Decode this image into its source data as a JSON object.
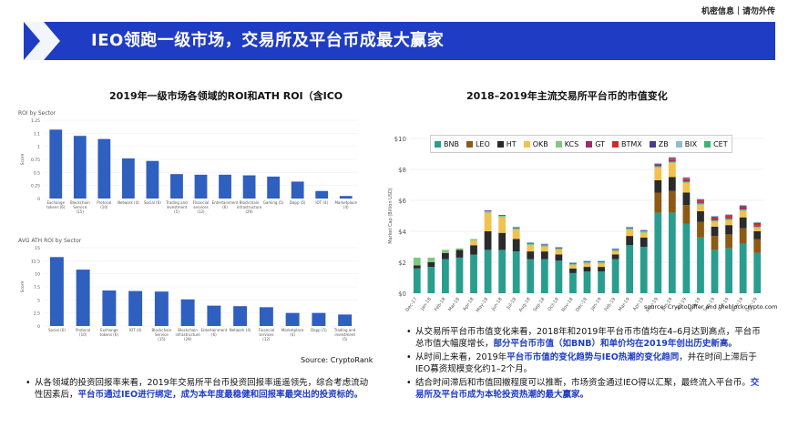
{
  "confidential": "机密信息｜请勿外传",
  "banner_title": "IEO领跑一级市场，交易所及平台币成最大赢家",
  "left": {
    "title": "2019年一级市场各领域的ROI和ATH ROI（含ICO",
    "source": "Source: CryptoRank",
    "bullet_1": "从各领域的投资回报率来看，2019年交易所平台币投资回报率遥遥领先，综合考虑流动性因素后，",
    "bullet_1_hl": "平台币通过IEO进行绑定，成为本年度最稳健和回报率最突出的投资标的。"
  },
  "right": {
    "title": "2018–2019年主流交易所平台币的市值变化",
    "source": "source: CryptoDiffer and theblockcrypto.com",
    "bullet_1_pre": "从交易所平台币市值变化来看，2018年和2019年平台币市值均在4–6月达到高点，平台币总市值大幅度增长，",
    "bullet_1_hl": "部分平台币市值（如BNB）和单价均在2019年创出历史新高。",
    "bullet_2_pre": "从时间上来看，2019年",
    "bullet_2_hl": "平台币市值的变化趋势与IEO热潮的变化趋同",
    "bullet_2_post": "，并在时间上滞后于IEO募资规模变化约1–2个月。",
    "bullet_3_pre": "结合时间滞后和市值回撤程度可以推断，市场资金通过IEO得以汇聚，最终流入平台币。",
    "bullet_3_hl": "交易所及平台币成为本轮投资热潮的最大赢家。"
  },
  "colors": {
    "banner": "#1f3cc4",
    "bar": "#2f5fbf",
    "BNB": "#2a9d8f",
    "LEO": "#8b5a14",
    "HT": "#2b2b2b",
    "OKB": "#f2c14e",
    "KCS": "#7fc97f",
    "GT": "#9b2d6b",
    "BTMX": "#d62728",
    "ZB": "#4b3c8c",
    "BIX": "#8fbcd4",
    "CET": "#3cb371"
  },
  "chart_data": [
    {
      "type": "bar",
      "title": "ROI by Sector",
      "ylabel": "Score",
      "ylim": [
        0,
        1.25
      ],
      "yticks": [
        "1.25",
        "1.1",
        "1",
        "0.75",
        "0.5",
        "0.25",
        "0"
      ],
      "categories": [
        "Exchange tokens (6)",
        "Blockchain Service (15)",
        "Protocol (10)",
        "Network (4)",
        "Social (6)",
        "Trading and investment (5)",
        "Financial services (12)",
        "Entertainment (6)",
        "Blockchain infrastructure (29)",
        "Gaming (5)",
        "Dapp (5)",
        "IOT (4)",
        "Marketplace (4)"
      ],
      "values": [
        1.1,
        1.0,
        0.95,
        0.64,
        0.6,
        0.39,
        0.38,
        0.38,
        0.37,
        0.35,
        0.27,
        0.12,
        0.04
      ]
    },
    {
      "type": "bar",
      "title": "AVG ATH ROI by Sector",
      "ylabel": "Score",
      "ylim": [
        0,
        15
      ],
      "yticks": [
        "15",
        "12.5",
        "10",
        "7.5",
        "5",
        "2.5",
        "0"
      ],
      "categories": [
        "Social (6)",
        "Protocol (10)",
        "Exchange tokens (6)",
        "IOT (4)",
        "Blockchain Service (15)",
        "Blockchain infrastructure (29)",
        "Entertainment (6)",
        "Network (4)",
        "Financial services (12)",
        "Marketplace (4)",
        "Dapp (5)",
        "Trading and investment (5)"
      ],
      "values": [
        13.2,
        10.8,
        6.8,
        6.7,
        6.6,
        5.1,
        3.9,
        3.8,
        3.6,
        2.5,
        2.5,
        2.2
      ]
    },
    {
      "type": "bar",
      "stacked": true,
      "title": "",
      "ylabel": "Market Cap (Billion USD)",
      "ylim": [
        0,
        10
      ],
      "yticks": [
        "$10",
        "$8",
        "$6",
        "$4",
        "$2",
        "$0"
      ],
      "legend_position": "top",
      "x": [
        "Dec-17",
        "Jan-18",
        "Feb-18",
        "Mar-18",
        "Apr-18",
        "May-18",
        "Jun-18",
        "Jul-18",
        "Aug-18",
        "Sep-18",
        "Oct-18",
        "Nov-18",
        "Dec-18",
        "Jan-19",
        "Feb-19",
        "Mar-19",
        "Apr-19",
        "May-19",
        "Jun-19",
        "Jul-19",
        "Aug-19",
        "Sep-19",
        "Oct-19",
        "Nov-19",
        "Dec-19"
      ],
      "series": [
        {
          "name": "BNB",
          "values": [
            1.6,
            1.7,
            2.2,
            2.3,
            2.5,
            2.8,
            2.8,
            2.7,
            2.2,
            2.2,
            2.1,
            1.3,
            1.4,
            1.4,
            2.2,
            3.1,
            3.0,
            5.2,
            5.2,
            4.5,
            3.6,
            2.8,
            2.9,
            3.2,
            2.6
          ]
        },
        {
          "name": "LEO",
          "values": [
            0,
            0,
            0,
            0,
            0,
            0,
            0,
            0,
            0,
            0,
            0,
            0,
            0,
            0,
            0,
            0,
            0,
            1.3,
            1.4,
            1.2,
            1.0,
            0.9,
            0.9,
            1.0,
            0.9
          ]
        },
        {
          "name": "HT",
          "values": [
            0.2,
            0.3,
            0.4,
            0.5,
            0.6,
            1.2,
            1.1,
            0.8,
            0.5,
            0.5,
            0.4,
            0.3,
            0.3,
            0.3,
            0.3,
            0.6,
            0.6,
            0.8,
            0.9,
            0.8,
            0.7,
            0.6,
            0.6,
            0.7,
            0.5
          ]
        },
        {
          "name": "OKB",
          "values": [
            0,
            0,
            0,
            0,
            0.3,
            1.2,
            1.0,
            0.6,
            0.4,
            0.3,
            0.3,
            0.2,
            0.2,
            0.2,
            0.2,
            0.4,
            0.3,
            0.8,
            0.9,
            0.6,
            0.4,
            0.3,
            0.3,
            0.4,
            0.2
          ]
        },
        {
          "name": "KCS",
          "values": [
            0.5,
            0.3,
            0.2,
            0.1,
            0.1,
            0.1,
            0.1,
            0.1,
            0.1,
            0.1,
            0.1,
            0.1,
            0.1,
            0.1,
            0.1,
            0.1,
            0.1,
            0.1,
            0.1,
            0.1,
            0.1,
            0.1,
            0.1,
            0.1,
            0.1
          ]
        },
        {
          "name": "GT",
          "values": [
            0,
            0,
            0,
            0,
            0,
            0,
            0,
            0,
            0,
            0,
            0,
            0,
            0,
            0,
            0,
            0,
            0,
            0.1,
            0.1,
            0.1,
            0.1,
            0.1,
            0.1,
            0.1,
            0.1
          ]
        },
        {
          "name": "BTMX",
          "values": [
            0,
            0,
            0,
            0,
            0,
            0,
            0,
            0,
            0,
            0,
            0,
            0,
            0,
            0,
            0,
            0,
            0,
            0,
            0.1,
            0.1,
            0.1,
            0.1,
            0.1,
            0.1,
            0.1
          ]
        },
        {
          "name": "ZB",
          "values": [
            0,
            0,
            0,
            0,
            0,
            0.05,
            0.05,
            0.05,
            0.05,
            0.05,
            0.05,
            0.05,
            0.05,
            0.05,
            0.05,
            0.05,
            0.05,
            0.05,
            0.05,
            0.05,
            0.05,
            0.05,
            0.05,
            0.05,
            0.05
          ]
        },
        {
          "name": "BIX",
          "values": [
            0,
            0,
            0,
            0,
            0,
            0,
            0,
            0.05,
            0.05,
            0.05,
            0.05,
            0.05,
            0.05,
            0.05,
            0.05,
            0.05,
            0.05,
            0.05,
            0.05,
            0.05,
            0.05,
            0.05,
            0.05,
            0.05,
            0.05
          ]
        },
        {
          "name": "CET",
          "values": [
            0,
            0,
            0,
            0,
            0,
            0,
            0,
            0,
            0,
            0,
            0,
            0,
            0,
            0,
            0,
            0,
            0,
            0,
            0,
            0,
            0,
            0,
            0,
            0,
            0
          ]
        }
      ]
    }
  ]
}
